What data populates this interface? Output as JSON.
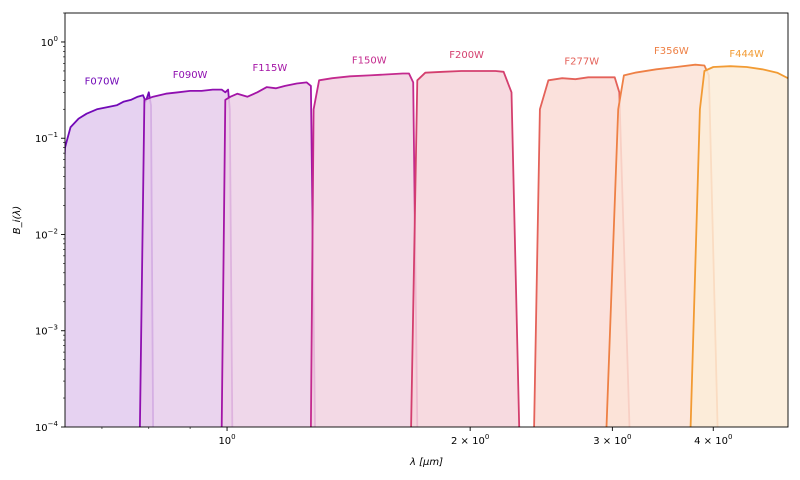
{
  "chart_data": {
    "type": "area",
    "title": "",
    "xlabel": "λ [μm]",
    "ylabel": "B_i(λ)",
    "xscale": "log",
    "yscale": "log",
    "xlim": [
      0.63,
      4.95
    ],
    "ylim": [
      0.0001,
      2.0
    ],
    "grid": false,
    "x_ticks": [
      {
        "value": 1.0,
        "label": "10",
        "exp": "0"
      },
      {
        "value": 2.0,
        "label": "2 × 10",
        "exp": "0"
      },
      {
        "value": 3.0,
        "label": "3 × 10",
        "exp": "0"
      },
      {
        "value": 4.0,
        "label": "4 × 10",
        "exp": "0"
      }
    ],
    "y_ticks": [
      {
        "value": 0.0001,
        "label": "10",
        "exp": "−4"
      },
      {
        "value": 0.001,
        "label": "10",
        "exp": "−3"
      },
      {
        "value": 0.01,
        "label": "10",
        "exp": "−2"
      },
      {
        "value": 0.1,
        "label": "10",
        "exp": "−1"
      },
      {
        "value": 1.0,
        "label": "10",
        "exp": "0"
      }
    ],
    "series": [
      {
        "name": "F070W",
        "color": "#7209b7",
        "fill": "#e2caee",
        "label_pos": [
          0.7,
          0.36
        ],
        "points": [
          [
            0.62,
            0.0001
          ],
          [
            0.625,
            0.02
          ],
          [
            0.63,
            0.08
          ],
          [
            0.64,
            0.13
          ],
          [
            0.655,
            0.16
          ],
          [
            0.67,
            0.18
          ],
          [
            0.69,
            0.2
          ],
          [
            0.71,
            0.21
          ],
          [
            0.73,
            0.22
          ],
          [
            0.745,
            0.24
          ],
          [
            0.76,
            0.25
          ],
          [
            0.775,
            0.27
          ],
          [
            0.787,
            0.28
          ],
          [
            0.793,
            0.24
          ],
          [
            0.8,
            0.3
          ],
          [
            0.805,
            0.22
          ],
          [
            0.81,
            0.0001
          ]
        ]
      },
      {
        "name": "F090W",
        "color": "#8f0fb0",
        "fill": "#e6cceb",
        "label_pos": [
          0.9,
          0.42
        ],
        "points": [
          [
            0.78,
            0.0001
          ],
          [
            0.79,
            0.25
          ],
          [
            0.81,
            0.27
          ],
          [
            0.84,
            0.29
          ],
          [
            0.87,
            0.3
          ],
          [
            0.9,
            0.31
          ],
          [
            0.93,
            0.31
          ],
          [
            0.96,
            0.32
          ],
          [
            0.985,
            0.32
          ],
          [
            0.995,
            0.3
          ],
          [
            1.003,
            0.32
          ],
          [
            1.008,
            0.2
          ],
          [
            1.015,
            0.0001
          ]
        ]
      },
      {
        "name": "F115W",
        "color": "#a415a6",
        "fill": "#ecd0e6",
        "label_pos": [
          1.13,
          0.5
        ],
        "points": [
          [
            0.985,
            0.0001
          ],
          [
            0.995,
            0.25
          ],
          [
            1.01,
            0.27
          ],
          [
            1.03,
            0.29
          ],
          [
            1.06,
            0.27
          ],
          [
            1.09,
            0.3
          ],
          [
            1.12,
            0.34
          ],
          [
            1.15,
            0.33
          ],
          [
            1.18,
            0.35
          ],
          [
            1.22,
            0.37
          ],
          [
            1.255,
            0.38
          ],
          [
            1.27,
            0.35
          ],
          [
            1.285,
            0.0001
          ]
        ]
      },
      {
        "name": "F150W",
        "color": "#c42a8e",
        "fill": "#f1d2e0",
        "label_pos": [
          1.5,
          0.6
        ],
        "points": [
          [
            1.27,
            0.0001
          ],
          [
            1.28,
            0.2
          ],
          [
            1.3,
            0.4
          ],
          [
            1.35,
            0.42
          ],
          [
            1.42,
            0.44
          ],
          [
            1.5,
            0.45
          ],
          [
            1.58,
            0.46
          ],
          [
            1.65,
            0.47
          ],
          [
            1.68,
            0.47
          ],
          [
            1.7,
            0.38
          ],
          [
            1.72,
            0.0001
          ]
        ]
      },
      {
        "name": "F200W",
        "color": "#d43f6e",
        "fill": "#f6d4da",
        "label_pos": [
          1.98,
          0.68
        ],
        "points": [
          [
            1.69,
            0.0001
          ],
          [
            1.72,
            0.4
          ],
          [
            1.76,
            0.48
          ],
          [
            1.85,
            0.49
          ],
          [
            1.95,
            0.5
          ],
          [
            2.05,
            0.5
          ],
          [
            2.15,
            0.5
          ],
          [
            2.2,
            0.49
          ],
          [
            2.25,
            0.3
          ],
          [
            2.3,
            0.0001
          ]
        ]
      },
      {
        "name": "F277W",
        "color": "#e4625a",
        "fill": "#fadcd6",
        "label_pos": [
          2.75,
          0.58
        ],
        "points": [
          [
            2.4,
            0.0001
          ],
          [
            2.44,
            0.2
          ],
          [
            2.5,
            0.4
          ],
          [
            2.6,
            0.42
          ],
          [
            2.7,
            0.41
          ],
          [
            2.8,
            0.43
          ],
          [
            2.9,
            0.43
          ],
          [
            3.02,
            0.43
          ],
          [
            3.06,
            0.3
          ],
          [
            3.15,
            0.0001
          ]
        ]
      },
      {
        "name": "F356W",
        "color": "#ee8045",
        "fill": "#fce3d7",
        "label_pos": [
          3.55,
          0.75
        ],
        "points": [
          [
            2.95,
            0.0001
          ],
          [
            3.05,
            0.2
          ],
          [
            3.1,
            0.45
          ],
          [
            3.2,
            0.48
          ],
          [
            3.4,
            0.52
          ],
          [
            3.6,
            0.55
          ],
          [
            3.8,
            0.58
          ],
          [
            3.9,
            0.57
          ],
          [
            3.95,
            0.45
          ],
          [
            4.05,
            0.0001
          ]
        ]
      },
      {
        "name": "F444W",
        "color": "#f29b33",
        "fill": "#fcecd8",
        "label_pos": [
          4.4,
          0.7
        ],
        "points": [
          [
            3.75,
            0.0001
          ],
          [
            3.85,
            0.2
          ],
          [
            3.9,
            0.5
          ],
          [
            4.0,
            0.55
          ],
          [
            4.2,
            0.56
          ],
          [
            4.4,
            0.55
          ],
          [
            4.6,
            0.52
          ],
          [
            4.8,
            0.48
          ],
          [
            4.95,
            0.42
          ]
        ]
      }
    ]
  }
}
